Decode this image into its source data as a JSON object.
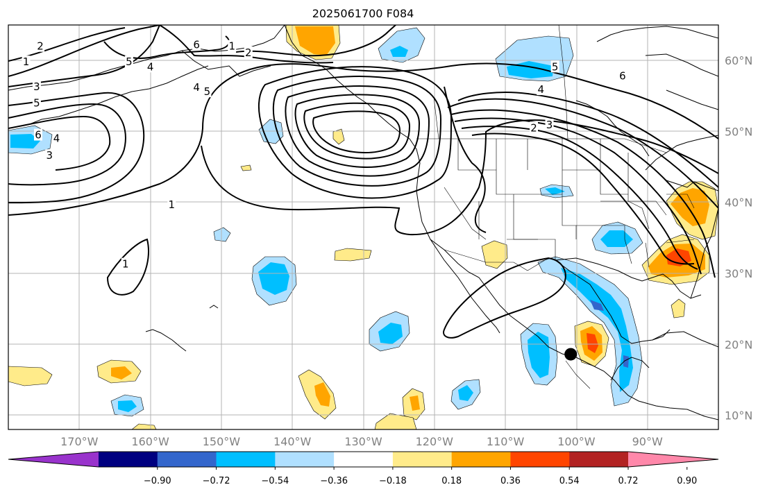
{
  "title": "2025061700 F084",
  "map": {
    "lon_range": [
      -180,
      -80
    ],
    "lat_range": [
      8,
      65
    ],
    "lon_ticks": [
      -170,
      -160,
      -150,
      -140,
      -130,
      -120,
      -110,
      -100,
      -90
    ],
    "lat_ticks": [
      10,
      20,
      30,
      40,
      50,
      60
    ],
    "lon_labels": [
      "170°W",
      "160°W",
      "150°W",
      "140°W",
      "130°W",
      "120°W",
      "110°W",
      "100°W",
      "90°W"
    ],
    "lat_labels": [
      "10°N",
      "20°N",
      "30°N",
      "40°N",
      "50°N",
      "60°N"
    ],
    "grid": true,
    "storm_marker": {
      "lon": -100.8,
      "lat": 18.6
    }
  },
  "colorbar": {
    "colors": [
      "#9933cc",
      "#000080",
      "#3366cc",
      "#00bfff",
      "#b0e0ff",
      "#ffffff",
      "#ffeb8a",
      "#ffa500",
      "#ff4500",
      "#b22222",
      "#ff88aa"
    ],
    "tick_labels": [
      "−0.90",
      "−0.72",
      "−0.54",
      "−0.36",
      "−0.18",
      "0.18",
      "0.36",
      "0.54",
      "0.72",
      "0.90"
    ]
  },
  "contour_labels": [
    {
      "text": "1",
      "lon": -177.5,
      "lat": 59.8
    },
    {
      "text": "2",
      "lon": -175.5,
      "lat": 62.0
    },
    {
      "text": "3",
      "lon": -176.0,
      "lat": 56.3
    },
    {
      "text": "5",
      "lon": -176.0,
      "lat": 54.0
    },
    {
      "text": "5",
      "lon": -163.0,
      "lat": 59.8
    },
    {
      "text": "4",
      "lon": -160.0,
      "lat": 59.1
    },
    {
      "text": "6",
      "lon": -153.5,
      "lat": 62.2
    },
    {
      "text": "6",
      "lon": -175.8,
      "lat": 49.5
    },
    {
      "text": "4",
      "lon": -173.2,
      "lat": 49.0
    },
    {
      "text": "3",
      "lon": -174.2,
      "lat": 46.6
    },
    {
      "text": "1",
      "lon": -148.5,
      "lat": 62.0
    },
    {
      "text": "2",
      "lon": -146.2,
      "lat": 61.1
    },
    {
      "text": "4",
      "lon": -153.5,
      "lat": 56.2
    },
    {
      "text": "5",
      "lon": -152.0,
      "lat": 55.6
    },
    {
      "text": "1",
      "lon": -157.0,
      "lat": 39.7
    },
    {
      "text": "1",
      "lon": -163.5,
      "lat": 31.3
    },
    {
      "text": "5",
      "lon": -103.0,
      "lat": 59.1
    },
    {
      "text": "4",
      "lon": -105.0,
      "lat": 55.9
    },
    {
      "text": "6",
      "lon": -93.5,
      "lat": 57.8
    },
    {
      "text": "2",
      "lon": -106.0,
      "lat": 50.5
    },
    {
      "text": "3",
      "lon": -103.8,
      "lat": 50.9
    }
  ]
}
